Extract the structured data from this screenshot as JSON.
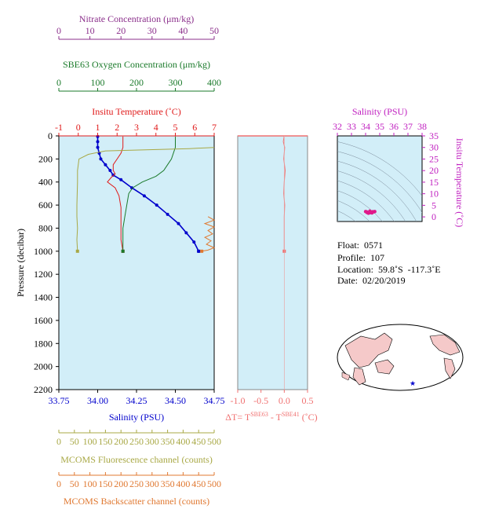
{
  "chart_data": [
    {
      "type": "line",
      "name": "profile",
      "axes": {
        "nitrate": {
          "label": "Nitrate Concentration (μm/kg)",
          "range": [
            0,
            50
          ],
          "ticks": [
            0,
            10,
            20,
            30,
            40,
            50
          ],
          "color": "#8b2f8b"
        },
        "oxygen": {
          "label": "SBE63 Oxygen Concentration (μm/kg)",
          "range": [
            0,
            400
          ],
          "ticks": [
            0,
            100,
            200,
            300,
            400
          ],
          "color": "#1a7a2a"
        },
        "temperature": {
          "label": "Insitu Temperature (˚C)",
          "range": [
            -1,
            7
          ],
          "ticks": [
            -1,
            0,
            1,
            2,
            3,
            4,
            5,
            6,
            7
          ],
          "color": "#e01b1b"
        },
        "pressure": {
          "label": "Pressure (decibar)",
          "range": [
            0,
            2200
          ],
          "ticks": [
            0,
            200,
            400,
            600,
            800,
            1000,
            1200,
            1400,
            1600,
            1800,
            2000,
            2200
          ],
          "reversed": true
        },
        "salinity": {
          "label": "Salinity (PSU)",
          "range": [
            33.75,
            34.75
          ],
          "ticks": [
            "33.75",
            "34.00",
            "34.25",
            "34.50",
            "34.75"
          ],
          "color": "#0000cc"
        },
        "fluorescence": {
          "label": "MCOMS Fluorescence channel (counts)",
          "range": [
            0,
            500
          ],
          "ticks": [
            0,
            50,
            100,
            150,
            200,
            250,
            300,
            350,
            400,
            450,
            500
          ],
          "color": "#a8a845"
        },
        "backscatter": {
          "label": "MCOMS Backscatter channel (counts)",
          "range": [
            0,
            500
          ],
          "ticks": [
            0,
            50,
            100,
            150,
            200,
            250,
            300,
            350,
            400,
            450,
            500
          ],
          "color": "#e07830"
        }
      },
      "series": [
        {
          "name": "Salinity",
          "axis": "salinity",
          "color": "#0000cc",
          "x": [
            34.0,
            34.0,
            34.0,
            34.01,
            34.02,
            34.05,
            34.08,
            34.1,
            34.15,
            34.22,
            34.3,
            34.38,
            34.45,
            34.52,
            34.57,
            34.62,
            34.65
          ],
          "y": [
            5,
            50,
            100,
            150,
            200,
            250,
            300,
            340,
            380,
            450,
            520,
            600,
            680,
            760,
            840,
            920,
            1000
          ]
        },
        {
          "name": "Temperature",
          "axis": "temperature",
          "color": "#e01b1b",
          "x": [
            2.3,
            2.3,
            2.2,
            2.0,
            1.8,
            1.8,
            1.9,
            1.7,
            1.5,
            1.9,
            2.1,
            2.2,
            2.2,
            2.2,
            2.2,
            2.3
          ],
          "y": [
            5,
            100,
            150,
            200,
            250,
            300,
            330,
            360,
            400,
            450,
            520,
            620,
            700,
            800,
            900,
            1000
          ]
        },
        {
          "name": "Oxygen",
          "axis": "oxygen",
          "color": "#1a7a2a",
          "x": [
            300,
            300,
            290,
            280,
            270,
            250,
            215,
            190,
            180,
            175,
            170,
            165,
            165,
            165
          ],
          "y": [
            5,
            100,
            200,
            250,
            300,
            350,
            400,
            450,
            500,
            600,
            700,
            800,
            900,
            1000
          ]
        },
        {
          "name": "Fluorescence",
          "axis": "fluorescence",
          "color": "#a8a845",
          "x": [
            500,
            420,
            150,
            95,
            65,
            60,
            60,
            58,
            58,
            60,
            58,
            60
          ],
          "y": [
            100,
            110,
            130,
            160,
            200,
            300,
            400,
            600,
            700,
            800,
            900,
            1000
          ]
        },
        {
          "name": "Backscatter",
          "axis": "backscatter",
          "color": "#e07830",
          "x": [
            480,
            500,
            470,
            500,
            480,
            495,
            470,
            490,
            475,
            500,
            480,
            460
          ],
          "y": [
            700,
            730,
            760,
            790,
            820,
            850,
            880,
            910,
            940,
            970,
            990,
            1000
          ]
        }
      ],
      "grid": false
    },
    {
      "type": "line",
      "name": "delta-t",
      "xlabel": "ΔT= T",
      "xlabel_sup1": "SBE63",
      "xlabel_mid": " - T",
      "xlabel_sup2": "SBE41",
      "xlabel_tail": " (˚C)",
      "xlim": [
        -1.0,
        0.5
      ],
      "ticks": [
        "-1.0",
        "-0.5",
        "0.0",
        "0.5"
      ],
      "ylim": [
        0,
        2200
      ],
      "series": [
        {
          "color": "#f07070",
          "x": [
            0.0,
            -0.02,
            0.01,
            -0.01,
            0.02,
            0.0,
            -0.01,
            0.01,
            0.0,
            0.0,
            0.0
          ],
          "y": [
            0,
            50,
            100,
            200,
            300,
            400,
            500,
            600,
            700,
            800,
            1000
          ]
        }
      ]
    },
    {
      "type": "scatter",
      "name": "ts-diagram",
      "xlabel": "Salinity (PSU)",
      "ylabel": "Insitu Temperature (˚C)",
      "xlim": [
        32,
        38
      ],
      "ylim": [
        -2,
        35
      ],
      "xticks": [
        32,
        33,
        34,
        35,
        36,
        37,
        38
      ],
      "yticks": [
        0,
        5,
        10,
        15,
        20,
        25,
        30,
        35
      ],
      "points": {
        "x": [
          34.0,
          34.05,
          34.1,
          34.2,
          34.3,
          34.4,
          34.5,
          34.6,
          34.65,
          34.3,
          34.1,
          34.45
        ],
        "y": [
          2.3,
          2.2,
          1.9,
          1.6,
          1.8,
          2.0,
          2.2,
          2.2,
          2.3,
          2.5,
          2.1,
          1.7
        ]
      },
      "color": "#e0198a"
    }
  ],
  "float_info": {
    "float": "Float:  0571",
    "profile": "Profile:  107",
    "location": "Location:  59.8˚S  -117.3˚E",
    "date": "Date:  02/20/2019"
  },
  "colors": {
    "panel_bg": "#d2eef8",
    "map_land": "#f5c9c9",
    "map_ocean": "#ffffff"
  }
}
